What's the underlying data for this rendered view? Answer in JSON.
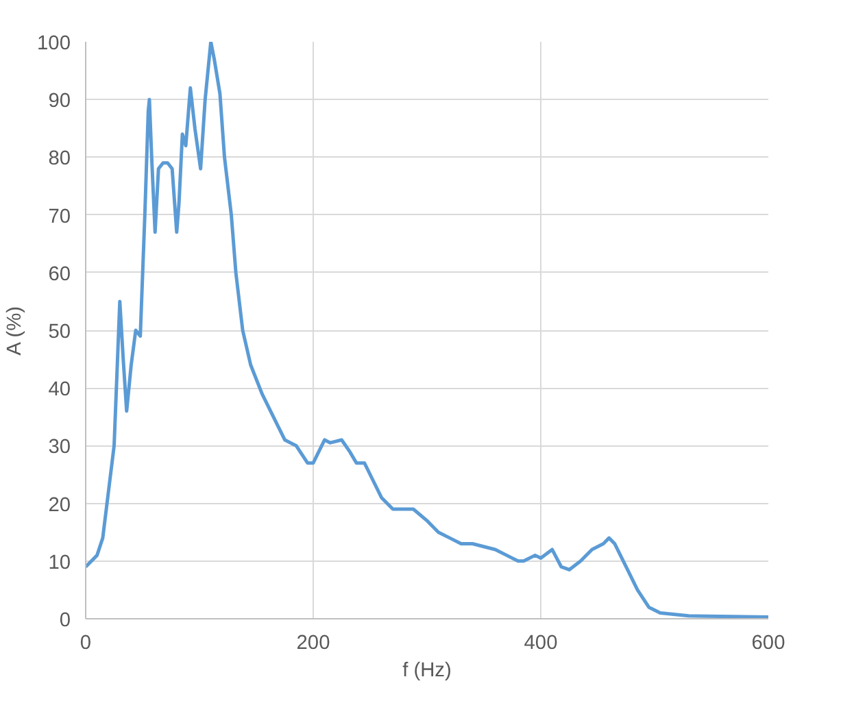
{
  "chart_data": {
    "type": "line",
    "xlabel": "f (Hz)",
    "ylabel": "A (%)",
    "xlim": [
      0,
      600
    ],
    "ylim": [
      0,
      100
    ],
    "xticks": [
      0,
      200,
      400,
      600
    ],
    "yticks": [
      0,
      10,
      20,
      30,
      40,
      50,
      60,
      70,
      80,
      90,
      100
    ],
    "grid": true,
    "line_style": "solid",
    "marker": "none",
    "series": [
      {
        "color": "#5b9bd5",
        "x": [
          0,
          10,
          15,
          20,
          25,
          28,
          30,
          33,
          36,
          40,
          44,
          48,
          52,
          55,
          56,
          58,
          61,
          64,
          68,
          72,
          76,
          80,
          82,
          85,
          88,
          92,
          96,
          101,
          105,
          110,
          113,
          118,
          122,
          128,
          132,
          138,
          145,
          155,
          165,
          175,
          185,
          195,
          200,
          210,
          215,
          225,
          232,
          238,
          245,
          250,
          260,
          270,
          280,
          288,
          300,
          310,
          320,
          330,
          340,
          350,
          360,
          370,
          380,
          385,
          395,
          400,
          410,
          418,
          425,
          435,
          445,
          455,
          460,
          465,
          475,
          485,
          495,
          505,
          530,
          600
        ],
        "values": [
          9,
          11,
          14,
          22,
          30,
          45,
          55,
          45,
          36,
          44,
          50,
          49,
          70,
          88,
          90,
          80,
          67,
          78,
          79,
          79,
          78,
          67,
          72,
          84,
          82,
          92,
          85,
          78,
          90,
          100,
          97,
          91,
          80,
          70,
          60,
          50,
          44,
          39,
          35,
          31,
          30,
          27,
          27,
          31,
          30.5,
          31,
          29,
          27,
          27,
          25,
          21,
          19,
          19,
          19,
          17,
          15,
          14,
          13,
          13,
          12.5,
          12,
          11,
          10,
          10,
          11,
          10.5,
          12,
          9,
          8.5,
          10,
          12,
          13,
          14,
          13,
          9,
          5,
          2,
          1,
          0.5,
          0.3
        ]
      }
    ]
  }
}
